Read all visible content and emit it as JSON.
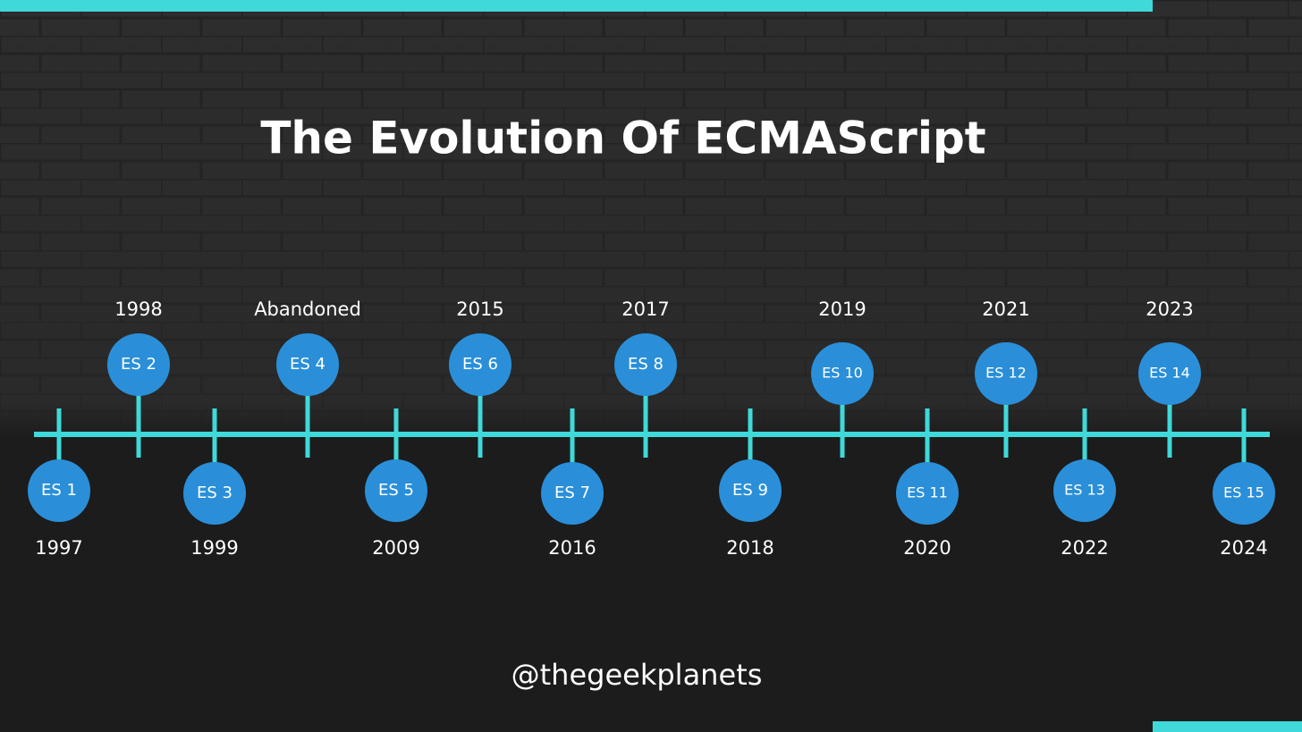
{
  "title": "The Evolution Of ECMAScript",
  "events": [
    {
      "label": "ES 1",
      "year": "1997"
    },
    {
      "label": "ES 2",
      "year": "1998"
    },
    {
      "label": "ES 3",
      "year": "1999"
    },
    {
      "label": "ES 4",
      "year": "Abandoned"
    },
    {
      "label": "ES 5",
      "year": "2009"
    },
    {
      "label": "ES 6",
      "year": "2015"
    },
    {
      "label": "ES 7",
      "year": "2016"
    },
    {
      "label": "ES 8",
      "year": "2017"
    },
    {
      "label": "ES 9",
      "year": "2018"
    },
    {
      "label": "ES 10",
      "year": "2019"
    },
    {
      "label": "ES 11",
      "year": "2020"
    },
    {
      "label": "ES 12",
      "year": "2021"
    },
    {
      "label": "ES 13",
      "year": "2022"
    },
    {
      "label": "ES 14",
      "year": "2023"
    },
    {
      "label": "ES 15",
      "year": "2024"
    }
  ],
  "footer": {
    "handle": "@thegeekplanets"
  }
}
